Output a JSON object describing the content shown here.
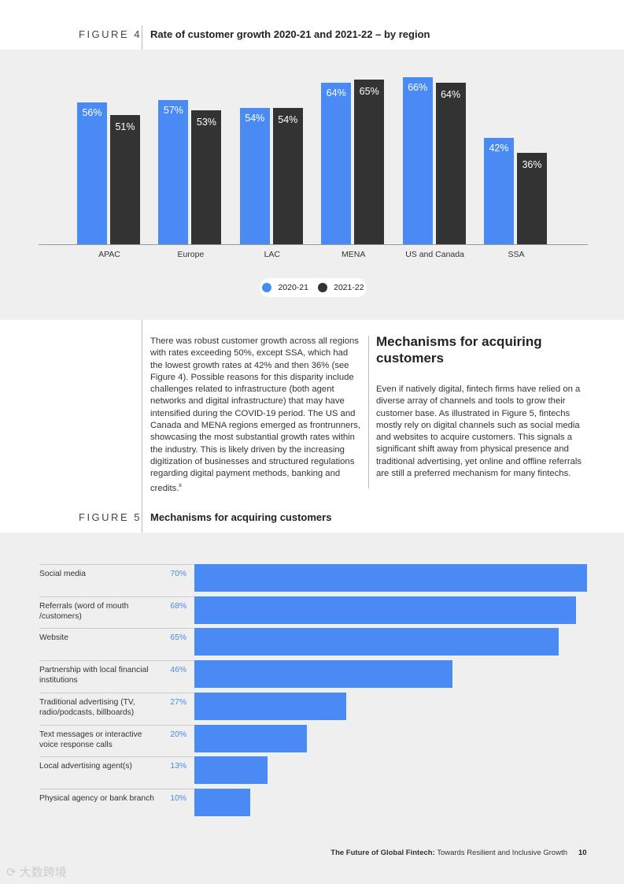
{
  "figure4": {
    "label": "FIGURE 4",
    "title": "Rate of customer growth 2020-21 and 2021-22 – by region"
  },
  "figure5": {
    "label": "FIGURE 5",
    "title": "Mechanisms for acquiring customers"
  },
  "body_text": "There was robust customer growth across all regions with rates exceeding 50%, except SSA, which had the lowest growth rates at 42% and then 36% (see Figure 4). Possible reasons for this disparity include challenges related to infrastructure (both agent networks and digital infrastructure) that may have intensified during the COVID-19 period. The US and Canada and MENA regions emerged as frontrunners, showcasing the most substantial growth rates within the industry. This is likely driven by the increasing digitization of businesses and structured regulations regarding digital payment methods, banking and credits.",
  "footnote_ref": "8",
  "section": {
    "heading": "Mechanisms for acquiring customers",
    "text": "Even if natively digital, fintech firms have relied on a diverse array of channels and tools to grow their customer base. As illustrated in Figure 5, fintechs mostly rely on digital channels such as social media and websites to acquire customers. This signals a significant shift away from physical presence and traditional advertising, yet online and offline referrals are still a preferred mechanism for many fintechs."
  },
  "footer": {
    "title_bold": "The Future of Global Fintech:",
    "title_rest": " Towards Resilient and Inclusive Growth",
    "page": "10",
    "watermark": "大数跨境"
  },
  "chart_data": [
    {
      "type": "bar",
      "title": "Rate of customer growth 2020-21 and 2021-22 – by region",
      "categories": [
        "APAC",
        "Europe",
        "LAC",
        "MENA",
        "US and Canada",
        "SSA"
      ],
      "series": [
        {
          "name": "2020-21",
          "values": [
            56,
            57,
            54,
            64,
            66,
            42
          ],
          "color": "#4a8af4"
        },
        {
          "name": "2021-22",
          "values": [
            51,
            53,
            54,
            65,
            64,
            36
          ],
          "color": "#333333"
        }
      ],
      "value_labels": {
        "2020-21": [
          "56%",
          "57%",
          "54%",
          "64%",
          "66%",
          "42%"
        ],
        "2021-22": [
          "51%",
          "53%",
          "54%",
          "65%",
          "64%",
          "36%"
        ]
      },
      "legend": "bottom-center",
      "grid": false
    },
    {
      "type": "bar",
      "orientation": "horizontal",
      "title": "Mechanisms for acquiring customers",
      "categories": [
        "Social media",
        "Referrals (word of mouth /customers)",
        "Website",
        "Partnership with local financial institutions",
        "Traditional advertising (TV, radio/podcasts, billboards)",
        "Text messages or interactive voice response calls",
        "Local advertising agent(s)",
        "Physical agency or bank branch"
      ],
      "values": [
        70,
        68,
        65,
        46,
        27,
        20,
        13,
        10
      ],
      "value_labels": [
        "70%",
        "68%",
        "65%",
        "46%",
        "27%",
        "20%",
        "13%",
        "10%"
      ],
      "color": "#4a8af4",
      "grid": false
    }
  ]
}
